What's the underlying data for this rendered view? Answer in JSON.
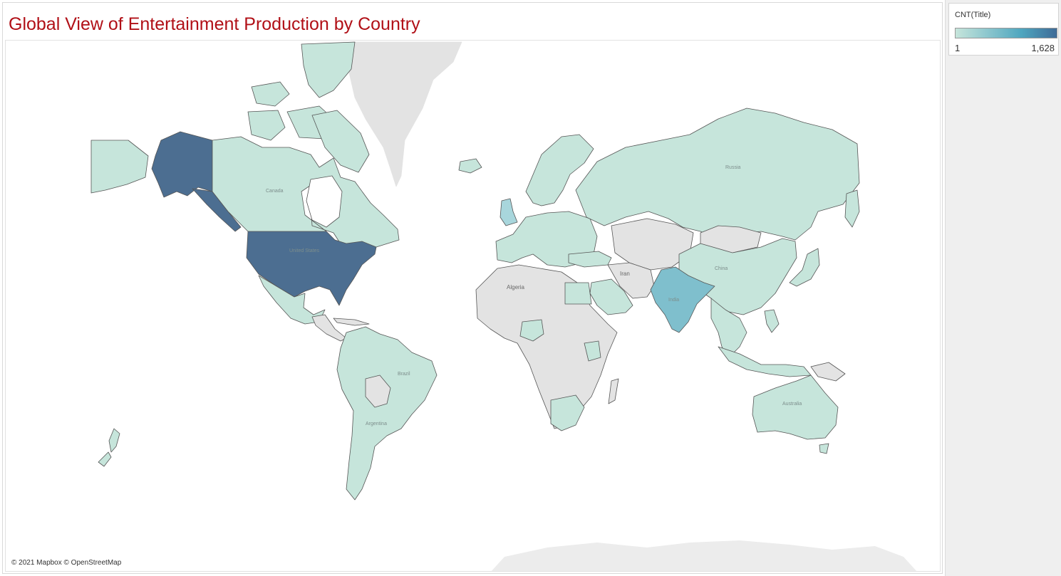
{
  "title": "Global View of Entertainment Production by Country",
  "legend": {
    "field": "CNT(Title)",
    "min_label": "1",
    "max_label": "1,628",
    "color_low": "#c6e5db",
    "color_mid": "#4fa6bf",
    "color_high": "#3f6b97"
  },
  "colors": {
    "no_data": "#e3e3e3",
    "low": "#c6e5db",
    "high": "#4c6e91",
    "india": "#7fbfcd",
    "uk": "#a8d6dc",
    "border": "#555555"
  },
  "map_labels": {
    "us": "United States",
    "canada": "Canada",
    "russia": "Russia",
    "china": "China",
    "india": "India",
    "iran": "Iran",
    "algeria": "Algeria",
    "brazil": "Brazil",
    "argentina": "Argentina",
    "australia": "Australia"
  },
  "attribution": "© 2021 Mapbox © OpenStreetMap"
}
